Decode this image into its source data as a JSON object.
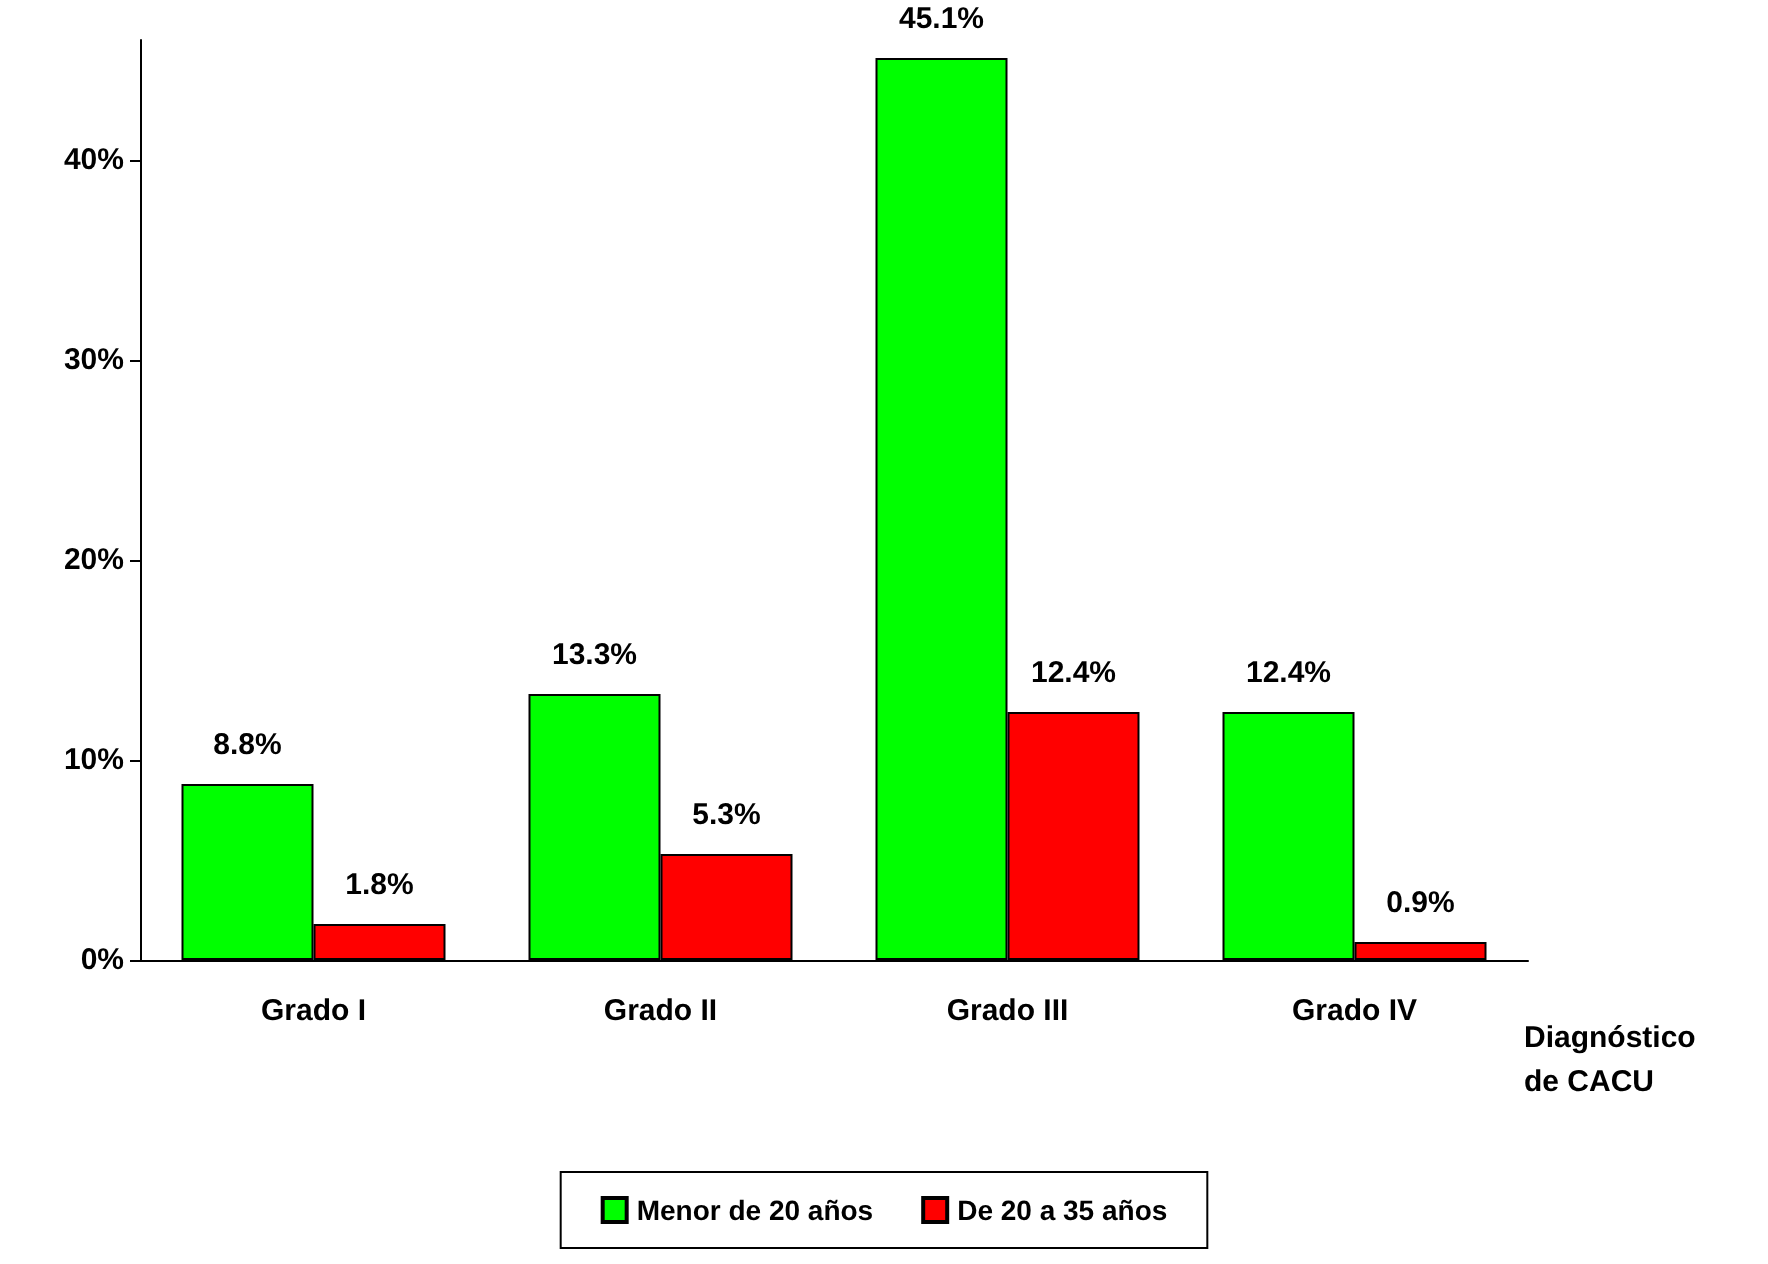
{
  "chart_data": {
    "type": "bar",
    "xlabel": "Diagnóstico\nde CACU",
    "categories": [
      "Grado I",
      "Grado II",
      "Grado III",
      "Grado IV"
    ],
    "series": [
      {
        "name": "Menor de 20 años",
        "color": "#00ff00",
        "values": [
          8.8,
          13.3,
          45.1,
          12.4
        ],
        "value_labels": [
          "8.8%",
          "13.3%",
          "45.1%",
          "12.4%"
        ]
      },
      {
        "name": "De 20 a 35 años",
        "color": "#ff0000",
        "values": [
          1.8,
          5.3,
          12.4,
          0.9
        ],
        "value_labels": [
          "1.8%",
          "5.3%",
          "12.4%",
          "0.9%"
        ]
      }
    ],
    "ylim": [
      0,
      46
    ],
    "yticks": [
      {
        "value": 0,
        "label": "0%"
      },
      {
        "value": 10,
        "label": "10%"
      },
      {
        "value": 20,
        "label": "20%"
      },
      {
        "value": 30,
        "label": "30%"
      },
      {
        "value": 40,
        "label": "40%"
      }
    ],
    "grid": false,
    "legend": "bottom"
  }
}
